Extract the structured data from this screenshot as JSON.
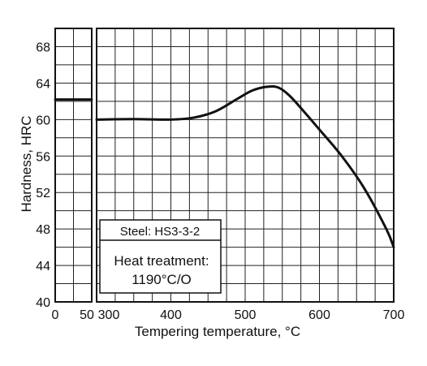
{
  "chart_data": {
    "type": "line",
    "xlabel": "Tempering temperature, °C",
    "ylabel": "Hardness, HRC",
    "ylim": [
      40,
      70
    ],
    "y_ticks": [
      40,
      44,
      48,
      52,
      56,
      60,
      64,
      68
    ],
    "left_panel": {
      "xlim": [
        0,
        50
      ],
      "x_ticks": [
        0,
        50
      ],
      "series": [
        {
          "x": [
            0,
            50
          ],
          "y": [
            62.2,
            62.2
          ]
        }
      ]
    },
    "right_panel": {
      "xlim": [
        300,
        700
      ],
      "x_ticks": [
        300,
        400,
        500,
        600,
        700
      ],
      "series": [
        {
          "x": [
            300,
            350,
            400,
            430,
            460,
            490,
            510,
            530,
            545,
            560,
            580,
            600,
            630,
            660,
            690,
            700
          ],
          "y": [
            60.0,
            60.05,
            60.0,
            60.2,
            60.9,
            62.3,
            63.2,
            63.6,
            63.5,
            62.6,
            60.8,
            58.9,
            56.0,
            52.5,
            48.0,
            46.0
          ]
        }
      ]
    },
    "grid": true,
    "annotation": {
      "steel_label": "Steel: HS3-3-2",
      "treatment_line1": "Heat treatment:",
      "treatment_line2": "1190°C/O"
    }
  }
}
